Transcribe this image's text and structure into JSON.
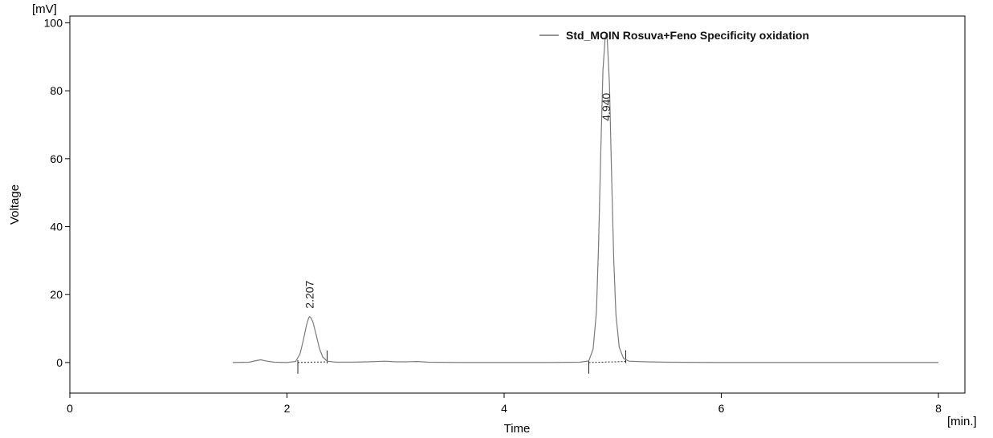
{
  "chart_data": {
    "type": "line",
    "title": "",
    "xlabel": "Time",
    "ylabel": "Voltage",
    "x_unit": "[min.]",
    "y_unit": "[mV]",
    "xlim": [
      0,
      8
    ],
    "ylim": [
      -9,
      102
    ],
    "x_ticks": [
      0,
      2,
      4,
      6,
      8
    ],
    "y_ticks": [
      0,
      20,
      40,
      60,
      80,
      100
    ],
    "grid": false,
    "legend_position": "top-right",
    "series": [
      {
        "name": "Std_MOIN Rosuva+Feno Specificity oxidation",
        "color": "#7a7a7a",
        "x": [
          1.5,
          1.65,
          1.72,
          1.76,
          1.8,
          1.88,
          2.0,
          2.08,
          2.12,
          2.15,
          2.18,
          2.2,
          2.207,
          2.22,
          2.24,
          2.27,
          2.3,
          2.33,
          2.37,
          2.45,
          2.6,
          2.75,
          2.9,
          3.0,
          3.1,
          3.2,
          3.3,
          3.6,
          4.0,
          4.4,
          4.7,
          4.78,
          4.82,
          4.85,
          4.87,
          4.89,
          4.91,
          4.93,
          4.94,
          4.95,
          4.97,
          4.99,
          5.01,
          5.03,
          5.06,
          5.1,
          5.15,
          5.3,
          5.5,
          6.0,
          7.0,
          8.0
        ],
        "y": [
          0.0,
          0.1,
          0.6,
          0.8,
          0.5,
          0.1,
          0.0,
          0.3,
          2.5,
          6.5,
          11.0,
          13.2,
          13.5,
          13.2,
          11.8,
          8.0,
          4.0,
          1.6,
          0.4,
          0.1,
          0.1,
          0.2,
          0.4,
          0.2,
          0.2,
          0.3,
          0.1,
          0.0,
          0.0,
          0.0,
          0.1,
          0.5,
          4.0,
          15.0,
          35.0,
          62.0,
          86.0,
          95.5,
          96.5,
          95.0,
          82.0,
          55.0,
          30.0,
          14.0,
          4.5,
          1.2,
          0.4,
          0.2,
          0.1,
          0.0,
          0.0,
          0.0
        ]
      }
    ],
    "annotations": [
      {
        "x": 2.207,
        "y": 13.5,
        "label": "2.207"
      },
      {
        "x": 4.94,
        "y": 96.5,
        "label": "4.940"
      }
    ],
    "integration_baselines": [
      {
        "start_x": 2.1,
        "start_y": 0.0,
        "end_x": 2.37,
        "end_y": 0.2
      },
      {
        "start_x": 4.78,
        "start_y": 0.0,
        "end_x": 5.12,
        "end_y": 0.3
      }
    ]
  }
}
